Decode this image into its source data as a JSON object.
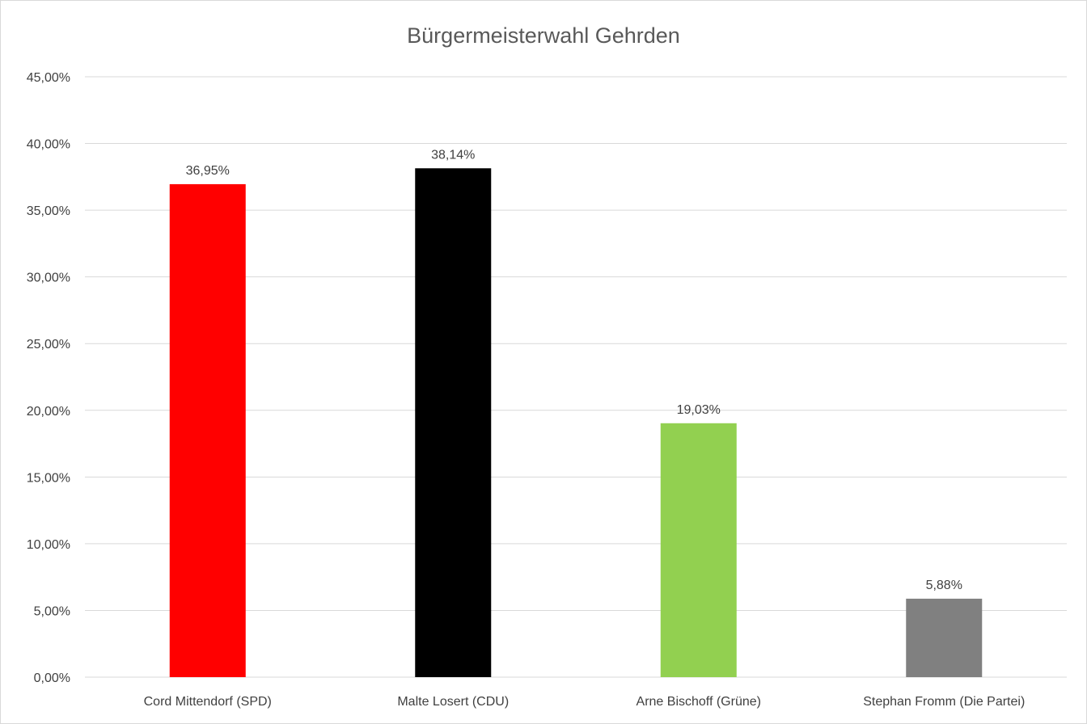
{
  "chart_data": {
    "type": "bar",
    "title": "Bürgermeisterwahl Gehrden",
    "xlabel": "",
    "ylabel": "",
    "categories": [
      "Cord Mittendorf (SPD)",
      "Malte Losert (CDU)",
      "Arne Bischoff (Grüne)",
      "Stephan Fromm (Die Partei)"
    ],
    "values": [
      36.95,
      38.14,
      19.03,
      5.88
    ],
    "data_labels": [
      "36,95%",
      "38,14%",
      "19,03%",
      "5,88%"
    ],
    "bar_colors": [
      "#ff0000",
      "#000000",
      "#92d050",
      "#808080"
    ],
    "ylim": [
      0,
      45
    ],
    "yticks": [
      0,
      5,
      10,
      15,
      20,
      25,
      30,
      35,
      40,
      45
    ],
    "ytick_labels": [
      "0,00%",
      "5,00%",
      "10,00%",
      "15,00%",
      "20,00%",
      "25,00%",
      "30,00%",
      "35,00%",
      "40,00%",
      "45,00%"
    ],
    "grid": true,
    "legend": "none"
  }
}
